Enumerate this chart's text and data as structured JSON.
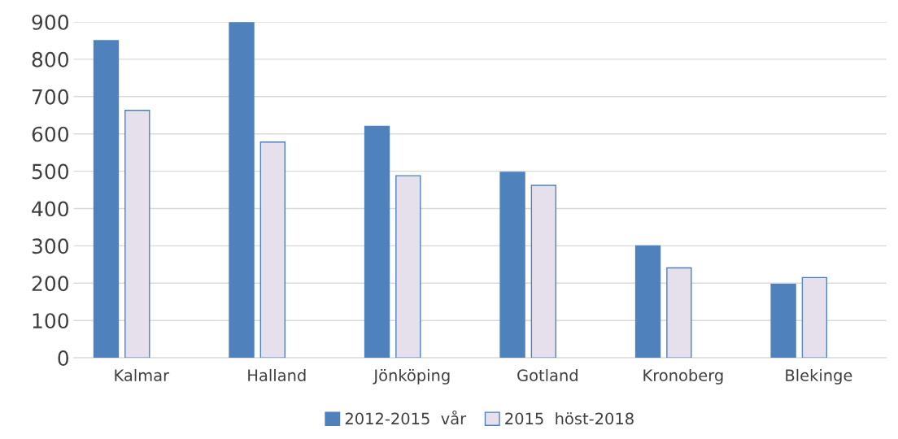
{
  "chart_data": {
    "type": "bar",
    "categories": [
      "Kalmar",
      "Halland",
      "Jönköping",
      "Gotland",
      "Kronoberg",
      "Blekinge"
    ],
    "series": [
      {
        "name": "2012-2015  vår",
        "color": "#4f81bd",
        "values": [
          850,
          898,
          620,
          497,
          300,
          197
        ]
      },
      {
        "name": "2015  höst-2018",
        "color": "#e6e0ec",
        "values": [
          663,
          578,
          488,
          462,
          241,
          215
        ]
      }
    ],
    "ylim": [
      0,
      900
    ],
    "yticks": [
      0,
      100,
      200,
      300,
      400,
      500,
      600,
      700,
      800,
      900
    ],
    "grid": "y",
    "legend": "bottom"
  }
}
